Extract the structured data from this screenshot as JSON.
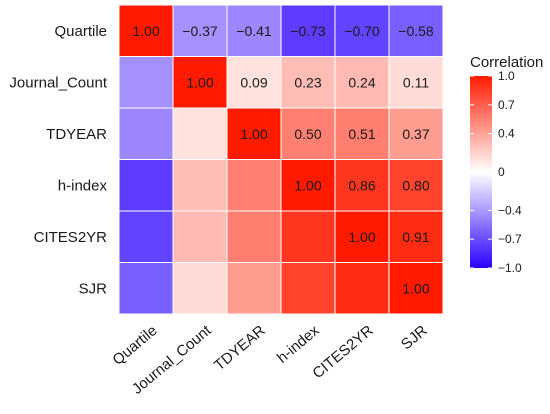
{
  "chart_data": {
    "type": "heatmap",
    "variables": [
      "Quartile",
      "Journal_Count",
      "TDYEAR",
      "h-index",
      "CITES2YR",
      "SJR"
    ],
    "matrix": [
      [
        1.0,
        -0.37,
        -0.41,
        -0.73,
        -0.7,
        -0.58
      ],
      [
        -0.37,
        1.0,
        0.09,
        0.23,
        0.24,
        0.11
      ],
      [
        -0.41,
        0.09,
        1.0,
        0.5,
        0.51,
        0.37
      ],
      [
        -0.73,
        0.23,
        0.5,
        1.0,
        0.86,
        0.8
      ],
      [
        -0.7,
        0.24,
        0.51,
        0.86,
        1.0,
        0.91
      ],
      [
        -0.58,
        0.11,
        0.37,
        0.8,
        0.91,
        1.0
      ]
    ],
    "labels_shown": "upper-triangle",
    "value_range": [
      -1.0,
      1.0
    ],
    "colors": {
      "low": "#2b00ff",
      "mid": "#ffffff",
      "high": "#ff1a00"
    },
    "legend": {
      "title": "Correlation",
      "ticks": [
        1.0,
        0.7,
        0.4,
        0,
        -0.4,
        -0.7,
        -1.0
      ],
      "tick_labels": [
        "1.0",
        "0.7",
        "0.4",
        "0",
        "−0.4",
        "−0.7",
        "−1.0"
      ],
      "placement": "right"
    }
  }
}
